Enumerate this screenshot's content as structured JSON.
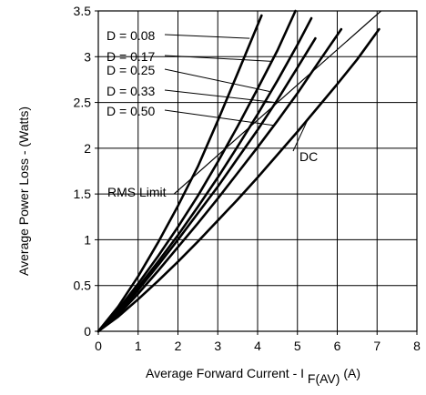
{
  "chart_data": {
    "type": "line",
    "title": "",
    "xlabel_main": "Average Forward Current - I",
    "xlabel_sub": "F(AV)",
    "xlabel_unit": "(A)",
    "ylabel": "Average Power Loss - (Watts)",
    "xlim": [
      0,
      8
    ],
    "ylim": [
      0,
      3.5
    ],
    "grid": true,
    "x_ticks": [
      "0",
      "1",
      "2",
      "3",
      "4",
      "5",
      "6",
      "7",
      "8"
    ],
    "y_ticks": [
      "0",
      "0.5",
      "1",
      "1.5",
      "2",
      "2.5",
      "3",
      "3.5"
    ],
    "series": [
      {
        "name": "D = 0.08",
        "x": [
          0,
          0.5,
          1,
          1.5,
          2,
          2.5,
          3,
          3.5,
          4.1
        ],
        "y": [
          0,
          0.27,
          0.6,
          0.97,
          1.37,
          1.8,
          2.3,
          2.82,
          3.45
        ]
      },
      {
        "name": "D = 0.17",
        "x": [
          0,
          0.5,
          1,
          1.5,
          2,
          2.5,
          3,
          3.5,
          4,
          4.5,
          4.95
        ],
        "y": [
          0,
          0.24,
          0.52,
          0.82,
          1.14,
          1.48,
          1.85,
          2.24,
          2.65,
          3.07,
          3.5
        ]
      },
      {
        "name": "D = 0.25",
        "x": [
          0,
          0.5,
          1,
          1.5,
          2,
          2.5,
          3,
          3.5,
          4,
          4.5,
          5,
          5.35
        ],
        "y": [
          0,
          0.22,
          0.48,
          0.76,
          1.05,
          1.36,
          1.68,
          2.02,
          2.37,
          2.74,
          3.13,
          3.42
        ]
      },
      {
        "name": "D = 0.33",
        "x": [
          0,
          0.5,
          1,
          1.5,
          2,
          2.5,
          3,
          3.5,
          4,
          4.5,
          5,
          5.45
        ],
        "y": [
          0,
          0.2,
          0.45,
          0.72,
          1.0,
          1.29,
          1.58,
          1.89,
          2.2,
          2.53,
          2.88,
          3.2
        ]
      },
      {
        "name": "D = 0.50",
        "x": [
          0,
          0.5,
          1,
          1.5,
          2,
          2.5,
          3,
          3.5,
          4,
          4.5,
          5,
          5.5,
          6.1
        ],
        "y": [
          0,
          0.18,
          0.41,
          0.66,
          0.92,
          1.18,
          1.45,
          1.73,
          2.01,
          2.3,
          2.6,
          2.92,
          3.3
        ]
      },
      {
        "name": "DC",
        "x": [
          0,
          0.5,
          1,
          1.5,
          2,
          2.5,
          3,
          3.5,
          4,
          4.5,
          5,
          5.5,
          6,
          6.5,
          7.05
        ],
        "y": [
          0,
          0.16,
          0.35,
          0.55,
          0.76,
          0.98,
          1.21,
          1.44,
          1.68,
          1.93,
          2.18,
          2.44,
          2.7,
          2.97,
          3.3
        ]
      }
    ],
    "reference_lines": [
      {
        "name": "RMS Limit",
        "x": [
          1.9,
          7.1
        ],
        "y": [
          1.5,
          3.5
        ]
      }
    ],
    "annotations": [
      {
        "label": "D = 0.08",
        "target_series": "D = 0.08",
        "target_x": 3.8,
        "target_y": 3.2
      },
      {
        "label": "D = 0.17",
        "target_series": "D = 0.17",
        "target_x": 4.35,
        "target_y": 2.95
      },
      {
        "label": "D = 0.25",
        "target_series": "D = 0.25",
        "target_x": 4.3,
        "target_y": 2.62
      },
      {
        "label": "D = 0.33",
        "target_series": "D = 0.33",
        "target_x": 4.45,
        "target_y": 2.5
      },
      {
        "label": "D = 0.50",
        "target_series": "D = 0.50",
        "target_x": 4.4,
        "target_y": 2.25
      },
      {
        "label": "DC",
        "target_series": "DC",
        "target_x": 5.3,
        "target_y": 2.35
      },
      {
        "label": "RMS Limit",
        "target_series": "RMS Limit",
        "target_x": 2.0,
        "target_y": 1.5
      }
    ]
  }
}
